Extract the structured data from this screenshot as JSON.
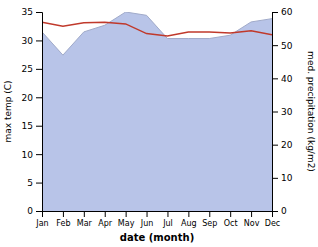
{
  "chart_data": {
    "type": "line",
    "categories": [
      "Jan",
      "Feb",
      "Mar",
      "Apr",
      "May",
      "Jun",
      "Jul",
      "Aug",
      "Sep",
      "Oct",
      "Nov",
      "Dec"
    ],
    "xlabel": "date (month)",
    "ylabel": "max temp (C)",
    "y2label": "med. precipitation (kg/m2)",
    "ylim": [
      0,
      35
    ],
    "yticks": [
      0,
      5,
      10,
      15,
      20,
      25,
      30,
      35
    ],
    "y2lim": [
      0,
      60
    ],
    "y2ticks": [
      0,
      10,
      20,
      30,
      40,
      50,
      60
    ],
    "series": [
      {
        "type": "area",
        "axis": "y2",
        "color": "#b8c4e8",
        "values": [
          54,
          47,
          54,
          56,
          60,
          59,
          52,
          52,
          52,
          53,
          57,
          58
        ]
      },
      {
        "type": "line",
        "color": "#c0392b",
        "values": [
          33.2,
          32.5,
          33.1,
          33.2,
          32.9,
          31.2,
          30.8,
          31.5,
          31.5,
          31.3,
          31.7,
          31.0
        ]
      }
    ]
  }
}
